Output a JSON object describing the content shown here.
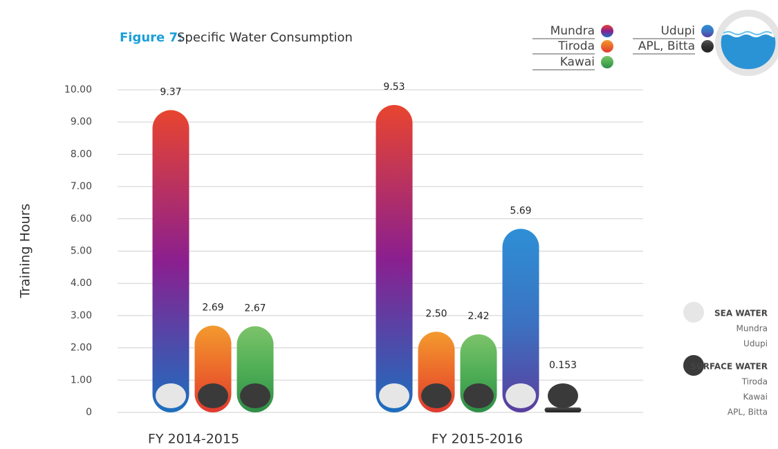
{
  "chart_data": {
    "type": "bar",
    "figure_label": "Figure 7:",
    "title": "Specific Water Consumption",
    "y_label": "Training Hours",
    "categories": [
      "FY 2014-2015",
      "FY 2015-2016"
    ],
    "series": [
      {
        "name": "Mundra",
        "color": [
          "#e8452f",
          "#8b1f8f",
          "#1c6fbf"
        ],
        "values": [
          9.37,
          9.53
        ]
      },
      {
        "name": "Tiroda",
        "color": [
          "#f39a2e",
          "#ec6a2b",
          "#e03a2f"
        ],
        "values": [
          2.69,
          2.5
        ],
        "value_labels": [
          "2.69",
          "2.50"
        ]
      },
      {
        "name": "Kawai",
        "color": [
          "#7cc36a",
          "#4fae55",
          "#2f8d47"
        ],
        "values": [
          2.67,
          2.42
        ]
      },
      {
        "name": "Udupi",
        "color": [
          "#2e8fd6",
          "#3b73c2",
          "#5a3e9e"
        ],
        "values": [
          null,
          5.69
        ]
      },
      {
        "name": "APL, Bitta",
        "color": [
          "#555555",
          "#333333",
          "#222222"
        ],
        "values": [
          null,
          0.153
        ]
      }
    ],
    "ylim": [
      0,
      10
    ],
    "yticks": [
      0,
      {
        "value": 1,
        "label": "1.00"
      },
      {
        "value": 2,
        "label": "2.00"
      },
      {
        "value": 3,
        "label": "3.00"
      },
      {
        "value": 4,
        "label": "4.00"
      },
      {
        "value": 5,
        "label": "5.00"
      },
      {
        "value": 6,
        "label": "6.00"
      },
      {
        "value": 7,
        "label": "7.00"
      },
      {
        "value": 8,
        "label": "8.00"
      },
      {
        "value": 9,
        "label": "9.00"
      },
      {
        "value": 10,
        "label": "10.00"
      }
    ],
    "grid": true,
    "source_legend": [
      {
        "name": "SEA WATER",
        "color": "#e6e6e6",
        "plants": [
          "Mundra",
          "Udupi"
        ]
      },
      {
        "name": "SURFACE WATER",
        "color": "#3a3a3a",
        "plants": [
          "Tiroda",
          "Kawai",
          "APL, Bitta"
        ]
      }
    ]
  }
}
